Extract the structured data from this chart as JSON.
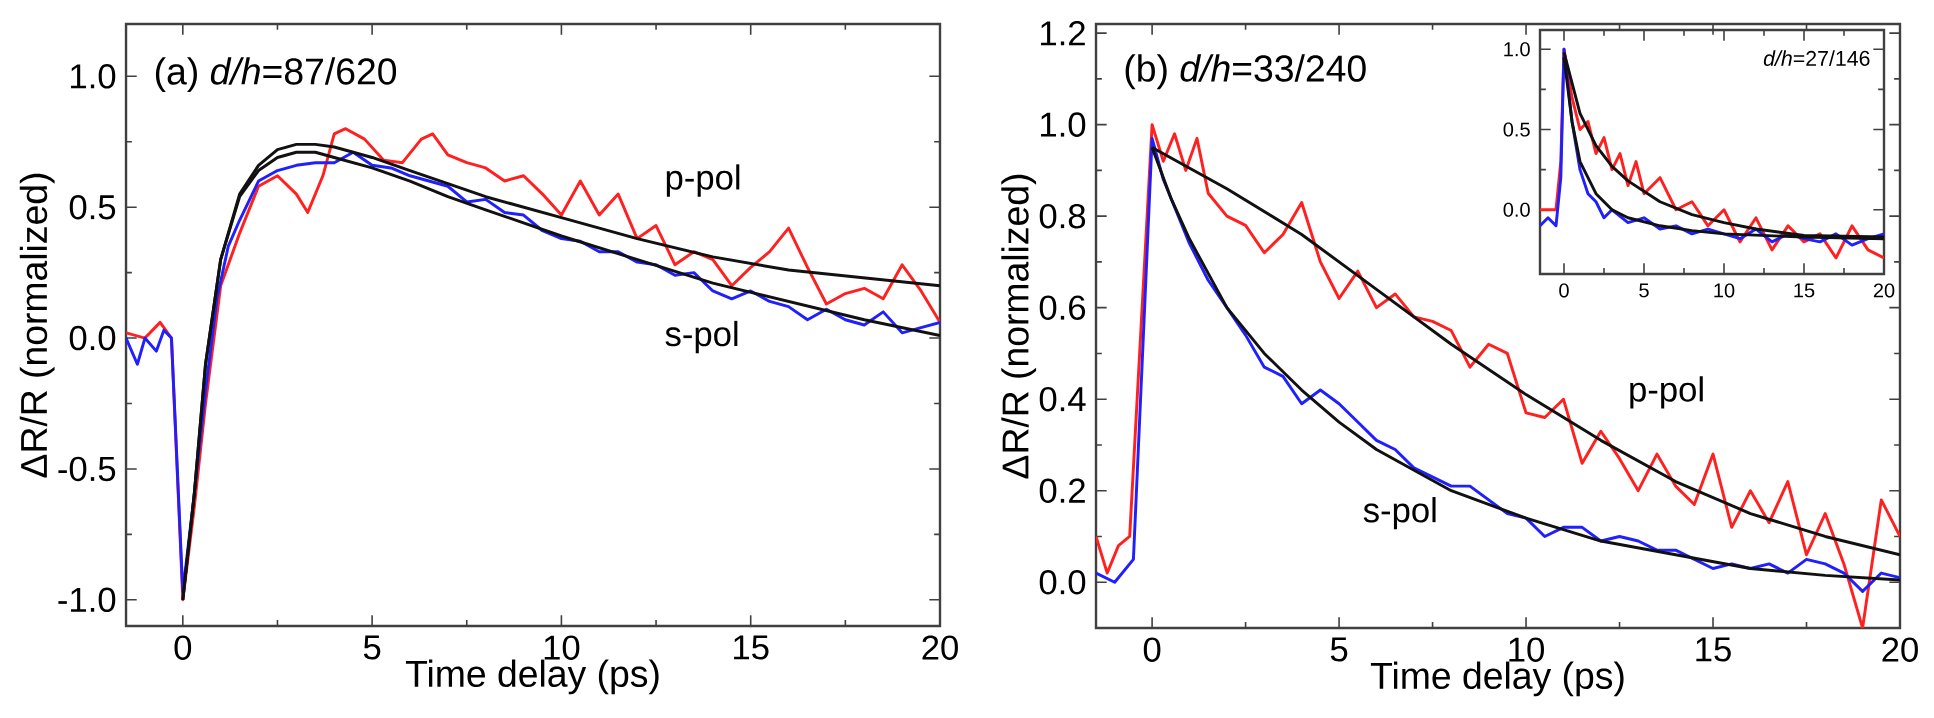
{
  "chart_data": [
    {
      "type": "line",
      "title": "(a) *d/h*=87/620",
      "xlabel": "Time delay (ps)",
      "ylabel": "ΔR/R (normalized)",
      "xlim": [
        -1.5,
        20
      ],
      "ylim": [
        -1.1,
        1.2
      ],
      "xticks": [
        0,
        5,
        10,
        15,
        20
      ],
      "yticks": [
        {
          "value": -1.0,
          "label": "-1.0"
        },
        {
          "value": -0.5,
          "label": "-0.5"
        },
        {
          "value": 0.0,
          "label": "0.0"
        },
        {
          "value": 0.5,
          "label": "0.5"
        },
        {
          "value": 1.0,
          "label": "1.0"
        }
      ],
      "series": [
        {
          "name": "p-pol",
          "color": "#ff2020",
          "x": [
            -1.5,
            -1,
            -0.6,
            -0.3,
            0,
            0.3,
            0.6,
            1,
            1.5,
            2,
            2.5,
            3,
            3.3,
            3.7,
            4,
            4.3,
            4.8,
            5.3,
            5.8,
            6.3,
            6.6,
            7,
            7.5,
            8,
            8.5,
            9,
            9.5,
            10,
            10.5,
            11,
            11.5,
            12,
            12.5,
            13,
            13.5,
            14,
            14.5,
            15,
            15.5,
            16,
            16.5,
            17,
            17.5,
            18,
            18.5,
            19,
            19.5,
            20
          ],
          "values": [
            0.02,
            0.0,
            0.06,
            0.0,
            -1.0,
            -0.65,
            -0.25,
            0.2,
            0.4,
            0.58,
            0.62,
            0.55,
            0.48,
            0.62,
            0.78,
            0.8,
            0.76,
            0.68,
            0.67,
            0.76,
            0.78,
            0.7,
            0.67,
            0.65,
            0.6,
            0.62,
            0.55,
            0.47,
            0.6,
            0.47,
            0.55,
            0.38,
            0.43,
            0.28,
            0.33,
            0.3,
            0.2,
            0.27,
            0.33,
            0.42,
            0.27,
            0.13,
            0.17,
            0.19,
            0.15,
            0.28,
            0.18,
            0.06
          ]
        },
        {
          "name": "s-pol",
          "color": "#2020ff",
          "x": [
            -1.5,
            -1.2,
            -1,
            -0.7,
            -0.5,
            -0.3,
            0,
            0.3,
            0.6,
            0.9,
            1.2,
            1.5,
            2,
            2.5,
            3,
            3.5,
            4,
            4.5,
            5,
            5.5,
            6,
            6.5,
            7,
            7.5,
            8,
            8.5,
            9,
            9.5,
            10,
            10.5,
            11,
            11.5,
            12,
            12.5,
            13,
            13.5,
            14,
            14.5,
            15,
            15.5,
            16,
            16.5,
            17,
            17.5,
            18,
            18.5,
            19,
            19.5,
            20
          ],
          "values": [
            0.0,
            -0.1,
            0.0,
            -0.05,
            0.03,
            0.0,
            -0.97,
            -0.6,
            -0.2,
            0.15,
            0.35,
            0.45,
            0.6,
            0.64,
            0.66,
            0.67,
            0.67,
            0.71,
            0.66,
            0.65,
            0.62,
            0.6,
            0.58,
            0.52,
            0.53,
            0.48,
            0.47,
            0.41,
            0.38,
            0.37,
            0.33,
            0.33,
            0.29,
            0.28,
            0.24,
            0.25,
            0.18,
            0.15,
            0.18,
            0.14,
            0.12,
            0.07,
            0.11,
            0.07,
            0.05,
            0.1,
            0.02,
            0.04,
            0.06
          ]
        },
        {
          "color": "#111111",
          "x": [
            0,
            0.3,
            0.6,
            1,
            1.5,
            2,
            2.5,
            3,
            3.5,
            4,
            5,
            6,
            7,
            8,
            10,
            12,
            14,
            16,
            18,
            20
          ],
          "values": [
            -1.0,
            -0.6,
            -0.1,
            0.3,
            0.55,
            0.66,
            0.72,
            0.74,
            0.74,
            0.73,
            0.69,
            0.64,
            0.59,
            0.54,
            0.46,
            0.38,
            0.31,
            0.26,
            0.23,
            0.2
          ]
        },
        {
          "color": "#111111",
          "x": [
            0,
            0.3,
            0.6,
            1,
            1.5,
            2,
            2.5,
            3,
            3.5,
            4,
            5,
            6,
            7,
            8,
            10,
            12,
            14,
            16,
            18,
            20
          ],
          "values": [
            -1.0,
            -0.6,
            -0.1,
            0.3,
            0.54,
            0.64,
            0.69,
            0.71,
            0.71,
            0.69,
            0.65,
            0.6,
            0.54,
            0.49,
            0.39,
            0.3,
            0.21,
            0.14,
            0.07,
            0.01
          ]
        }
      ]
    },
    {
      "type": "line",
      "title": "(b) *d/h*=33/240",
      "xlabel": "Time delay (ps)",
      "ylabel": "ΔR/R (normalized)",
      "xlim": [
        -1.5,
        20
      ],
      "ylim": [
        -0.1,
        1.22
      ],
      "xticks": [
        0,
        5,
        10,
        15,
        20
      ],
      "yticks": [
        {
          "value": 0.0,
          "label": "0.0"
        },
        {
          "value": 0.2,
          "label": "0.2"
        },
        {
          "value": 0.4,
          "label": "0.4"
        },
        {
          "value": 0.6,
          "label": "0.6"
        },
        {
          "value": 0.8,
          "label": "0.8"
        },
        {
          "value": 1.0,
          "label": "1.0"
        },
        {
          "value": 1.2,
          "label": "1.2"
        }
      ],
      "series": [
        {
          "name": "p-pol",
          "color": "#ff2020",
          "x": [
            -1.5,
            -1.2,
            -0.9,
            -0.6,
            -0.3,
            0,
            0.3,
            0.6,
            0.9,
            1.2,
            1.5,
            2,
            2.5,
            3,
            3.5,
            4,
            4.5,
            5,
            5.5,
            6,
            6.5,
            7,
            7.5,
            8,
            8.5,
            9,
            9.5,
            10,
            10.5,
            11,
            11.5,
            12,
            12.5,
            13,
            13.5,
            14,
            14.5,
            15,
            15.5,
            16,
            16.5,
            17,
            17.5,
            18,
            18.5,
            19,
            19.5,
            20
          ],
          "values": [
            0.1,
            0.02,
            0.08,
            0.1,
            0.55,
            1.0,
            0.92,
            0.98,
            0.9,
            0.97,
            0.85,
            0.8,
            0.78,
            0.72,
            0.76,
            0.83,
            0.7,
            0.62,
            0.68,
            0.6,
            0.63,
            0.58,
            0.57,
            0.55,
            0.47,
            0.52,
            0.5,
            0.37,
            0.36,
            0.4,
            0.26,
            0.33,
            0.27,
            0.2,
            0.28,
            0.21,
            0.17,
            0.28,
            0.12,
            0.2,
            0.13,
            0.22,
            0.06,
            0.15,
            0.04,
            -0.1,
            0.18,
            0.1
          ]
        },
        {
          "name": "s-pol",
          "color": "#2020ff",
          "x": [
            -1.5,
            -1,
            -0.5,
            -0.2,
            0,
            0.3,
            0.6,
            1,
            1.5,
            2,
            2.5,
            3,
            3.5,
            4,
            4.5,
            5,
            5.5,
            6,
            6.5,
            7,
            7.5,
            8,
            8.5,
            9,
            9.5,
            10,
            10.5,
            11,
            11.5,
            12,
            12.5,
            13,
            13.5,
            14,
            14.5,
            15,
            15.5,
            16,
            16.5,
            17,
            17.5,
            18,
            18.5,
            19,
            19.5,
            20
          ],
          "values": [
            0.02,
            0.0,
            0.05,
            0.6,
            0.97,
            0.88,
            0.82,
            0.74,
            0.66,
            0.6,
            0.54,
            0.47,
            0.45,
            0.39,
            0.42,
            0.39,
            0.35,
            0.31,
            0.29,
            0.25,
            0.23,
            0.21,
            0.21,
            0.18,
            0.15,
            0.14,
            0.1,
            0.12,
            0.12,
            0.09,
            0.1,
            0.09,
            0.07,
            0.07,
            0.05,
            0.03,
            0.04,
            0.03,
            0.04,
            0.02,
            0.05,
            0.04,
            0.02,
            -0.02,
            0.02,
            0.01
          ]
        },
        {
          "color": "#111111",
          "x": [
            0,
            2,
            4,
            6,
            8,
            10,
            12,
            14,
            16,
            18,
            20
          ],
          "values": [
            0.95,
            0.86,
            0.76,
            0.64,
            0.52,
            0.41,
            0.31,
            0.22,
            0.15,
            0.1,
            0.06
          ]
        },
        {
          "color": "#111111",
          "x": [
            0,
            0.5,
            1,
            2,
            3,
            4,
            5,
            6,
            8,
            10,
            12,
            14,
            16,
            18,
            20
          ],
          "values": [
            0.95,
            0.84,
            0.75,
            0.6,
            0.5,
            0.42,
            0.35,
            0.29,
            0.2,
            0.14,
            0.09,
            0.06,
            0.03,
            0.015,
            0.005
          ]
        }
      ]
    },
    {
      "type": "line",
      "title": "*d/h*=27/146",
      "xlim": [
        -1.5,
        20
      ],
      "ylim": [
        -0.4,
        1.12
      ],
      "xticks": [
        0,
        5,
        10,
        15,
        20
      ],
      "yticks": [
        {
          "value": 0.0,
          "label": "0.0"
        },
        {
          "value": 0.5,
          "label": "0.5"
        },
        {
          "value": 1.0,
          "label": "1.0"
        }
      ],
      "series": [
        {
          "color": "#ff2020",
          "x": [
            -1.5,
            -1,
            -0.5,
            -0.2,
            0,
            0.5,
            1,
            1.5,
            2,
            2.5,
            3,
            3.5,
            4,
            4.5,
            5,
            6,
            7,
            8,
            9,
            10,
            11,
            12,
            13,
            14,
            15,
            16,
            17,
            18,
            19,
            20
          ],
          "values": [
            0.0,
            0.0,
            0.0,
            0.3,
            1.0,
            0.7,
            0.5,
            0.55,
            0.35,
            0.45,
            0.25,
            0.35,
            0.15,
            0.3,
            0.1,
            0.2,
            0.0,
            0.05,
            -0.1,
            0.0,
            -0.2,
            -0.05,
            -0.25,
            -0.1,
            -0.2,
            -0.15,
            -0.3,
            -0.1,
            -0.25,
            -0.3
          ]
        },
        {
          "color": "#2020ff",
          "x": [
            -1.5,
            -1,
            -0.5,
            -0.2,
            0,
            0.5,
            1,
            1.5,
            2,
            2.5,
            3,
            4,
            5,
            6,
            7,
            8,
            9,
            10,
            11,
            12,
            13,
            14,
            15,
            16,
            17,
            18,
            19,
            20
          ],
          "values": [
            -0.1,
            -0.05,
            -0.1,
            0.2,
            1.0,
            0.55,
            0.25,
            0.1,
            0.05,
            -0.05,
            0.0,
            -0.08,
            -0.05,
            -0.12,
            -0.1,
            -0.15,
            -0.12,
            -0.15,
            -0.18,
            -0.12,
            -0.2,
            -0.15,
            -0.18,
            -0.2,
            -0.15,
            -0.22,
            -0.18,
            -0.15
          ]
        },
        {
          "color": "#111111",
          "x": [
            0,
            1,
            2,
            3,
            4,
            6,
            8,
            10,
            12,
            15,
            20
          ],
          "values": [
            0.98,
            0.6,
            0.4,
            0.27,
            0.18,
            0.05,
            -0.03,
            -0.08,
            -0.12,
            -0.16,
            -0.17
          ]
        },
        {
          "color": "#111111",
          "x": [
            0,
            0.5,
            1,
            2,
            3,
            4,
            6,
            8,
            10,
            15,
            20
          ],
          "values": [
            0.95,
            0.55,
            0.3,
            0.1,
            0.0,
            -0.05,
            -0.1,
            -0.13,
            -0.15,
            -0.17,
            -0.18
          ]
        }
      ]
    }
  ]
}
